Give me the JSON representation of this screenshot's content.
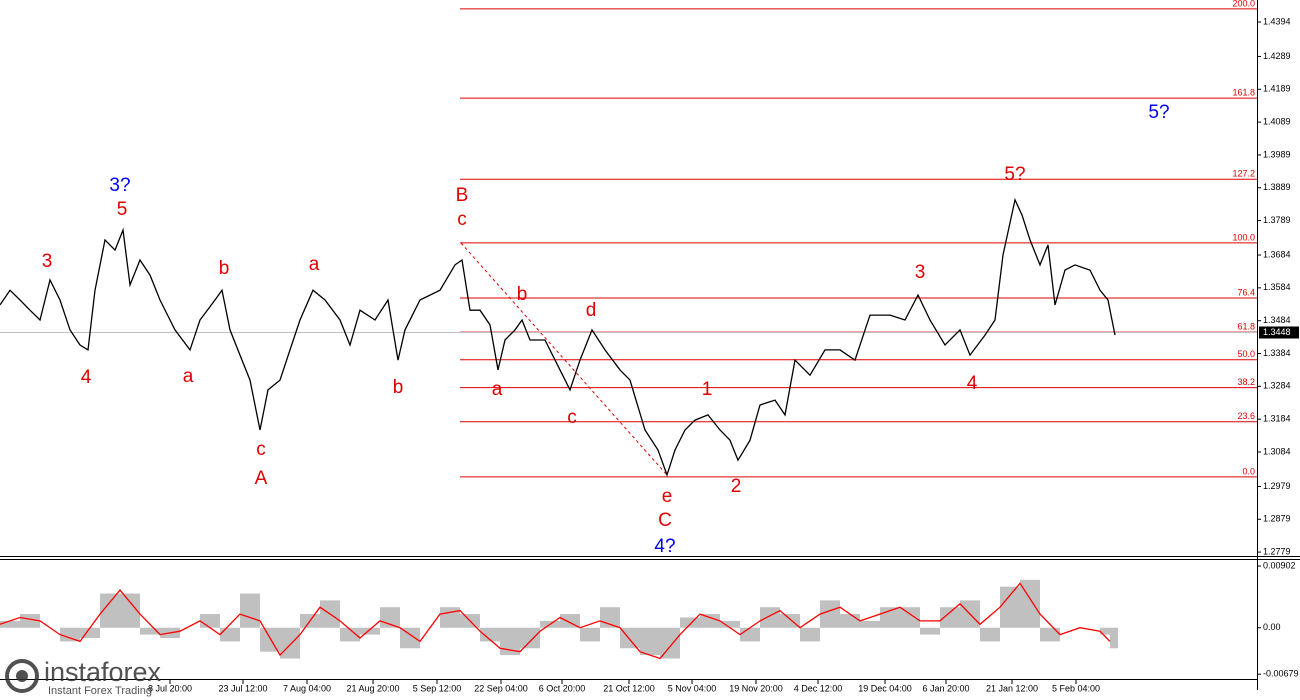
{
  "chart_data": [
    {
      "type": "line",
      "color": "#000000",
      "xlim": [
        0,
        1257
      ],
      "ylim": [
        1.2764,
        1.4461
      ],
      "xticks": [
        {
          "value": 170,
          "label": "8 Jul 20:00"
        },
        {
          "value": 243,
          "label": "23 Jul 12:00"
        },
        {
          "value": 307,
          "label": "7 Aug 04:00"
        },
        {
          "value": 373,
          "label": "21 Aug 20:00"
        },
        {
          "value": 437,
          "label": "5 Sep 12:00"
        },
        {
          "value": 501,
          "label": "22 Sep 04:00"
        },
        {
          "value": 562,
          "label": "6 Oct 20:00"
        },
        {
          "value": 629,
          "label": "21 Oct 12:00"
        },
        {
          "value": 692,
          "label": "5 Nov 04:00"
        },
        {
          "value": 756,
          "label": "19 Nov 20:00"
        },
        {
          "value": 818,
          "label": "4 Dec 12:00"
        },
        {
          "value": 885,
          "label": "19 Dec 04:00"
        },
        {
          "value": 946,
          "label": "6 Jan 20:00"
        },
        {
          "value": 1012,
          "label": "21 Jan 12:00"
        },
        {
          "value": 1076,
          "label": "5 Feb 04:00"
        }
      ],
      "yticks": [
        1.4394,
        1.4289,
        1.4189,
        1.4089,
        1.3989,
        1.3889,
        1.3789,
        1.3684,
        1.3584,
        1.3484,
        1.3384,
        1.3284,
        1.3184,
        1.3084,
        1.2979,
        1.2879,
        1.2779
      ],
      "x": [
        0,
        10,
        20,
        30,
        40,
        50,
        60,
        70,
        80,
        88,
        95,
        105,
        115,
        123,
        130,
        140,
        150,
        160,
        175,
        190,
        200,
        215,
        222,
        230,
        240,
        250,
        260,
        268,
        280,
        290,
        300,
        313,
        325,
        340,
        350,
        360,
        375,
        388,
        398,
        405,
        420,
        440,
        455,
        462,
        470,
        480,
        490,
        498,
        505,
        515,
        522,
        530,
        545,
        560,
        570,
        580,
        592,
        605,
        620,
        630,
        645,
        658,
        667,
        675,
        685,
        695,
        708,
        720,
        730,
        738,
        750,
        760,
        775,
        785,
        795,
        810,
        825,
        840,
        855,
        870,
        890,
        905,
        918,
        930,
        945,
        960,
        970,
        985,
        995,
        1003,
        1015,
        1022,
        1030,
        1040,
        1048,
        1055,
        1065,
        1075,
        1090,
        1100,
        1108,
        1115
      ],
      "values": [
        1.3532,
        1.3577,
        1.3547,
        1.3516,
        1.3486,
        1.3608,
        1.3547,
        1.3456,
        1.341,
        1.3395,
        1.3577,
        1.373,
        1.3699,
        1.376,
        1.3593,
        1.3669,
        1.3623,
        1.3547,
        1.3456,
        1.3395,
        1.3486,
        1.3547,
        1.3577,
        1.3456,
        1.3379,
        1.3303,
        1.3151,
        1.3273,
        1.3303,
        1.3395,
        1.3486,
        1.3577,
        1.3547,
        1.3486,
        1.341,
        1.3516,
        1.3486,
        1.3547,
        1.3364,
        1.3456,
        1.3547,
        1.3577,
        1.3654,
        1.3669,
        1.3516,
        1.3516,
        1.3471,
        1.3334,
        1.3425,
        1.3456,
        1.3486,
        1.3425,
        1.3425,
        1.3334,
        1.3273,
        1.3364,
        1.3456,
        1.3395,
        1.3334,
        1.3303,
        1.3151,
        1.309,
        1.3014,
        1.309,
        1.3151,
        1.3181,
        1.3197,
        1.3151,
        1.312,
        1.3059,
        1.312,
        1.3227,
        1.3242,
        1.3197,
        1.3364,
        1.3318,
        1.3395,
        1.3395,
        1.3364,
        1.3501,
        1.3501,
        1.3486,
        1.3562,
        1.3486,
        1.341,
        1.3456,
        1.3379,
        1.344,
        1.3486,
        1.3684,
        1.3852,
        1.3806,
        1.373,
        1.3654,
        1.3715,
        1.3532,
        1.3638,
        1.3654,
        1.3638,
        1.3577,
        1.3547,
        1.344
      ],
      "last_price": 1.3448,
      "level_color": "#e00000",
      "levels": [
        {
          "label": "200.0",
          "value": 1.4434
        },
        {
          "label": "161.8",
          "value": 1.4162
        },
        {
          "label": "127.2",
          "value": 1.3915
        },
        {
          "label": "100.0",
          "value": 1.3721
        },
        {
          "label": "76.4",
          "value": 1.3553
        },
        {
          "label": "61.8",
          "value": 1.3449
        },
        {
          "label": "50.0",
          "value": 1.3365
        },
        {
          "label": "38.2",
          "value": 1.328
        },
        {
          "label": "23.6",
          "value": 1.3176
        },
        {
          "label": "0.0",
          "value": 1.3008
        }
      ],
      "annotations": [
        {
          "text": "3",
          "x": 47,
          "y": 1.3663,
          "color": "#e00000"
        },
        {
          "text": "5",
          "x": 122,
          "y": 1.3821,
          "color": "#e00000"
        },
        {
          "text": "3?",
          "x": 120,
          "y": 1.3894,
          "color": "#0000ee"
        },
        {
          "text": "4",
          "x": 86,
          "y": 1.3309,
          "color": "#e00000"
        },
        {
          "text": "a",
          "x": 188,
          "y": 1.3312,
          "color": "#e00000"
        },
        {
          "text": "b",
          "x": 224,
          "y": 1.3641,
          "color": "#e00000"
        },
        {
          "text": "c",
          "x": 261,
          "y": 1.309,
          "color": "#e00000"
        },
        {
          "text": "A",
          "x": 261,
          "y": 1.3002,
          "color": "#e00000"
        },
        {
          "text": "a",
          "x": 314,
          "y": 1.3654,
          "color": "#e00000"
        },
        {
          "text": "b",
          "x": 398,
          "y": 1.3279,
          "color": "#e00000"
        },
        {
          "text": "B",
          "x": 462,
          "y": 1.3864,
          "color": "#e00000"
        },
        {
          "text": "c",
          "x": 462,
          "y": 1.3791,
          "color": "#e00000"
        },
        {
          "text": "b",
          "x": 522,
          "y": 1.3562,
          "color": "#e00000"
        },
        {
          "text": "a",
          "x": 497,
          "y": 1.3273,
          "color": "#e00000"
        },
        {
          "text": "d",
          "x": 591,
          "y": 1.3513,
          "color": "#e00000"
        },
        {
          "text": "c",
          "x": 572,
          "y": 1.3187,
          "color": "#e00000"
        },
        {
          "text": "e",
          "x": 667,
          "y": 1.2947,
          "color": "#e00000"
        },
        {
          "text": "C",
          "x": 665,
          "y": 1.2874,
          "color": "#e00000"
        },
        {
          "text": "4?",
          "x": 665,
          "y": 1.2794,
          "color": "#0000ee"
        },
        {
          "text": "1",
          "x": 707,
          "y": 1.3273,
          "color": "#e00000"
        },
        {
          "text": "2",
          "x": 736,
          "y": 1.2977,
          "color": "#e00000"
        },
        {
          "text": "3",
          "x": 920,
          "y": 1.3629,
          "color": "#e00000"
        },
        {
          "text": "4",
          "x": 972,
          "y": 1.3291,
          "color": "#e00000"
        },
        {
          "text": "5?",
          "x": 1015,
          "y": 1.3928,
          "color": "#e00000"
        },
        {
          "text": "5?",
          "x": 1159,
          "y": 1.4117,
          "color": "#0000ee"
        }
      ]
    },
    {
      "type": "bar",
      "xlim": [
        0,
        1257
      ],
      "ylim": [
        -0.0091,
        0.0099
      ],
      "yticks": [
        0.00902,
        {
          "value": 0,
          "label": "0.00"
        },
        -0.00679
      ],
      "x": [
        0,
        20,
        40,
        60,
        80,
        100,
        120,
        140,
        160,
        180,
        200,
        220,
        240,
        260,
        280,
        300,
        320,
        340,
        360,
        380,
        400,
        420,
        440,
        460,
        480,
        500,
        520,
        540,
        560,
        580,
        600,
        620,
        640,
        660,
        680,
        700,
        720,
        740,
        760,
        780,
        800,
        820,
        840,
        860,
        880,
        900,
        920,
        940,
        960,
        980,
        1000,
        1020,
        1040,
        1060,
        1080,
        1100,
        1110
      ],
      "series": [
        {
          "type": "bar",
          "color": "#c0c0c0",
          "values": [
            0.001,
            0.002,
            0,
            -0.002,
            -0.0015,
            0.005,
            0.005,
            -0.001,
            -0.0015,
            0,
            0.002,
            -0.002,
            0.005,
            -0.0035,
            -0.0045,
            0.002,
            0.004,
            -0.002,
            -0.001,
            0.003,
            -0.003,
            0,
            0.003,
            0.002,
            -0.002,
            -0.004,
            -0.003,
            0.001,
            0.002,
            -0.002,
            0.003,
            -0.003,
            -0.004,
            -0.0045,
            0.0015,
            0.002,
            0.001,
            -0.002,
            0.003,
            0.002,
            -0.002,
            0.004,
            0.002,
            0.001,
            0.003,
            0.003,
            -0.001,
            0.003,
            0.004,
            -0.002,
            0.006,
            0.007,
            -0.002,
            0,
            0,
            -0.001,
            -0.003
          ]
        },
        {
          "type": "line",
          "color": "#ff0000",
          "values": [
            0.0005,
            0.0015,
            0.001,
            -0.001,
            -0.002,
            0.002,
            0.0055,
            0.002,
            -0.001,
            -0.0005,
            0.001,
            -0.001,
            0.002,
            0.001,
            -0.004,
            -0.001,
            0.003,
            0.001,
            -0.0015,
            0.001,
            0,
            -0.002,
            0.002,
            0.0025,
            -0.0005,
            -0.003,
            -0.0035,
            -0.0005,
            0.0015,
            0,
            0.001,
            0,
            -0.0035,
            -0.0045,
            -0.001,
            0.002,
            0.001,
            -0.001,
            0.001,
            0.0025,
            0,
            0.002,
            0.003,
            0.001,
            0.002,
            0.003,
            0.001,
            0.001,
            0.0035,
            0.0005,
            0.003,
            0.0065,
            0.002,
            -0.001,
            0,
            -0.0005,
            -0.002
          ]
        }
      ]
    }
  ],
  "branding": {
    "name": "instaforex",
    "tagline": "Instant Forex Trading"
  }
}
